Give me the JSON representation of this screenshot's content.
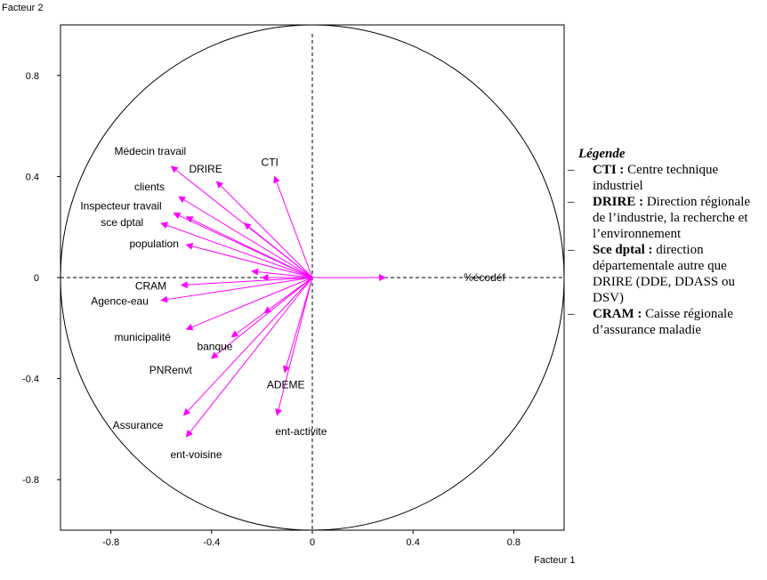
{
  "chart_data": {
    "type": "scatter",
    "subtype": "correlation-circle",
    "xlabel": "Facteur 1",
    "ylabel": "Facteur 2",
    "xlim": [
      -1,
      1
    ],
    "ylim": [
      -1,
      1
    ],
    "xticks": [
      -0.8,
      -0.4,
      0,
      0.4,
      0.8
    ],
    "yticks": [
      -0.8,
      -0.4,
      0,
      0.4,
      0.8
    ],
    "x_tick_labels": [
      "-0.8",
      "-0.4",
      "0",
      "0.4",
      "0.8"
    ],
    "y_tick_labels": [
      "-0.8",
      "-0.4",
      "0",
      "0.4",
      "0.8"
    ],
    "unit_circle": true,
    "arrow_color": "#ff00ff",
    "axis_color": "#000000",
    "points": [
      {
        "x": 0.29,
        "y": 0.0,
        "label": "%écodéf",
        "labeled": true
      },
      {
        "x": -0.15,
        "y": 0.4,
        "label": "CTI",
        "labeled": true
      },
      {
        "x": -0.38,
        "y": 0.38,
        "label": "DRIRE",
        "labeled": true
      },
      {
        "x": -0.56,
        "y": 0.44,
        "label": "Médecin travail",
        "labeled": true
      },
      {
        "x": -0.53,
        "y": 0.32,
        "label": "clients",
        "labeled": true
      },
      {
        "x": -0.55,
        "y": 0.255,
        "label": "Inspecteur travail",
        "labeled": true
      },
      {
        "x": -0.6,
        "y": 0.215,
        "label": "sce dptal",
        "labeled": true
      },
      {
        "x": -0.5,
        "y": 0.13,
        "label": "population",
        "labeled": true
      },
      {
        "x": -0.52,
        "y": -0.03,
        "label": "CRAM",
        "labeled": true
      },
      {
        "x": -0.6,
        "y": -0.09,
        "label": "Agence-eau",
        "labeled": true
      },
      {
        "x": -0.5,
        "y": -0.205,
        "label": "municipalité",
        "labeled": true
      },
      {
        "x": -0.32,
        "y": -0.235,
        "label": "banque",
        "labeled": true
      },
      {
        "x": -0.4,
        "y": -0.32,
        "label": "PNRenvt",
        "labeled": true
      },
      {
        "x": -0.11,
        "y": -0.375,
        "label": "ADEME",
        "labeled": true
      },
      {
        "x": -0.51,
        "y": -0.545,
        "label": "Assurance",
        "labeled": true
      },
      {
        "x": -0.14,
        "y": -0.545,
        "label": "ent-activite",
        "labeled": true
      },
      {
        "x": -0.5,
        "y": -0.63,
        "label": "ent-voisine",
        "labeled": true
      },
      {
        "x": -0.5,
        "y": 0.24,
        "label": "",
        "labeled": false
      },
      {
        "x": -0.27,
        "y": 0.215,
        "label": "",
        "labeled": false
      },
      {
        "x": -0.24,
        "y": 0.025,
        "label": "",
        "labeled": false
      },
      {
        "x": -0.19,
        "y": -0.14,
        "label": "",
        "labeled": false
      },
      {
        "x": -0.2,
        "y": 0.0,
        "label": "",
        "labeled": false
      }
    ]
  },
  "legend": {
    "title": "Légende",
    "entries": [
      {
        "term": "CTI :",
        "definition": "Centre technique industriel"
      },
      {
        "term": "DRIRE :",
        "definition": "Direction régionale de l’industrie, la recherche et l’environnement"
      },
      {
        "term": "Sce dptal :",
        "definition": "direction départementale autre que DRIRE (DDE, DDASS ou DSV)"
      },
      {
        "term": "CRAM :",
        "definition": "Caisse régionale d’assurance maladie"
      }
    ]
  }
}
